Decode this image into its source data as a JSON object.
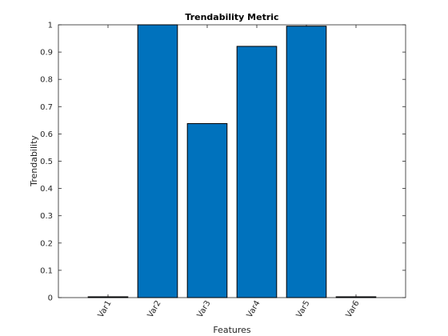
{
  "chart_data": {
    "type": "bar",
    "title": "Trendability Metric",
    "xlabel": "Features",
    "ylabel": "Trendability",
    "categories": [
      "Var1",
      "Var2",
      "Var3",
      "Var4",
      "Var5",
      "Var6"
    ],
    "values": [
      0.003,
      1.0,
      0.638,
      0.921,
      0.995,
      0.003
    ],
    "ylim": [
      0,
      1
    ],
    "yticks": [
      "0",
      "0.1",
      "0.2",
      "0.3",
      "0.4",
      "0.5",
      "0.6",
      "0.7",
      "0.8",
      "0.9",
      "1"
    ],
    "grid": false,
    "bar_color": "#0072BD",
    "edge_color": "#000000"
  }
}
